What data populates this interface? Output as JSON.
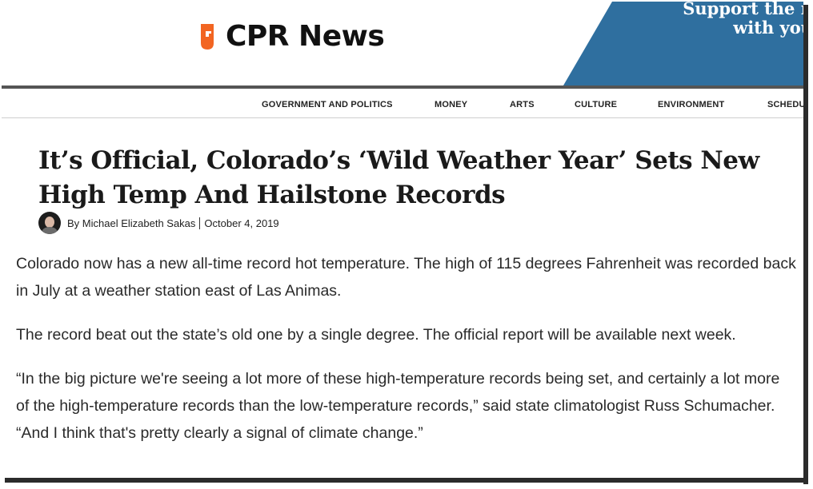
{
  "brand": {
    "name": "CPR News",
    "accent_color": "#f26522",
    "support_color": "#2f6f9f"
  },
  "support": {
    "line1": "Support the n",
    "line2": "with you"
  },
  "nav": {
    "items": [
      "GOVERNMENT AND POLITICS",
      "MONEY",
      "ARTS",
      "CULTURE",
      "ENVIRONMENT",
      "SCHEDU"
    ]
  },
  "article": {
    "headline": "It’s Official, Colorado’s ‘Wild Weather Year’ Sets New High Temp And Hailstone Records",
    "byline": "By Michael Elizabeth Sakas",
    "date": "October 4, 2019",
    "paragraphs": [
      "Colorado now has a new all-time record hot temperature. The high of 115 degrees Fahrenheit was recorded back in July at a weather station east of Las Animas.",
      "The record beat out the state’s old one by a single degree. The official report will be available next week.",
      "“In the big picture we're seeing a lot more of these high-temperature records being set, and certainly a lot more of the high-temperature records than the low-temperature records,” said state climatologist Russ Schumacher. “And I think that's pretty clearly a signal of climate change.”"
    ]
  }
}
